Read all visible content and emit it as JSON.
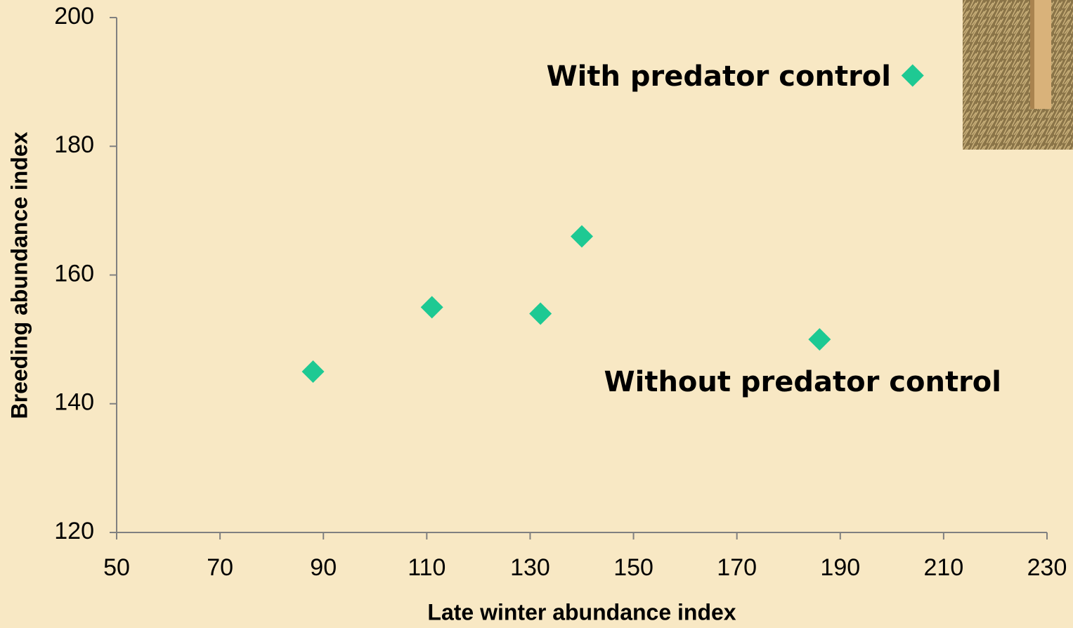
{
  "chart_data": {
    "type": "scatter",
    "x": [
      88,
      111,
      132,
      140,
      186,
      204
    ],
    "values": [
      145,
      155,
      154,
      166,
      150,
      191
    ],
    "color": "#1ec993",
    "xlabel": "Late winter abundance index",
    "ylabel": "Breeding abundance index",
    "xlim": [
      50,
      230
    ],
    "xticks": [
      50,
      70,
      90,
      110,
      130,
      150,
      170,
      190,
      210,
      230
    ],
    "ylim": [
      120,
      200
    ],
    "yticks": [
      120,
      140,
      160,
      180,
      200
    ],
    "grid": false,
    "annotations": [
      "With predator control",
      "Without predator control"
    ]
  }
}
